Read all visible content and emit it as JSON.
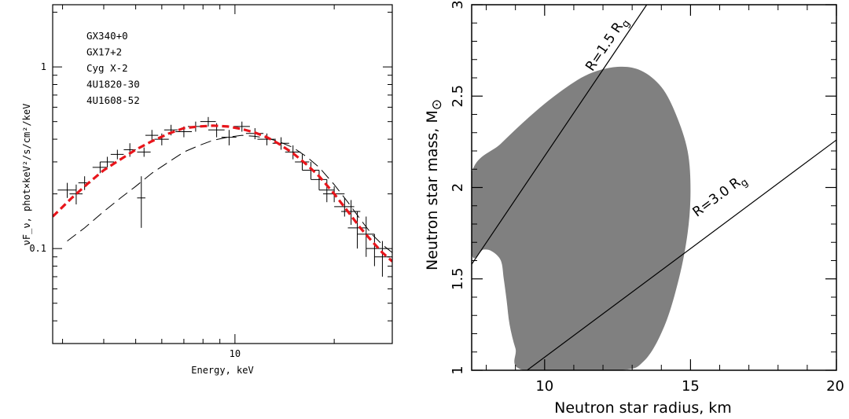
{
  "chart_data": [
    {
      "type": "scatter",
      "title": "",
      "xlabel": "Energy, keV",
      "ylabel": "νF_ν, phot×keV²/s/cm²/keV",
      "xscale": "log",
      "yscale": "log",
      "xlim": [
        2.8,
        30
      ],
      "ylim": [
        0.03,
        2.2
      ],
      "x_ticks": [
        {
          "value": 10,
          "label": "10"
        }
      ],
      "y_ticks": [
        {
          "value": 0.1,
          "label": "0.1"
        },
        {
          "value": 1,
          "label": "1"
        }
      ],
      "legend": {
        "placement": "top-left",
        "entries": [
          "GX340+0",
          "GX17+2",
          "Cyg X-2",
          "4U1820-30",
          "4U1608-52"
        ]
      },
      "model_curve": {
        "style": "red thick dashed",
        "x": [
          2.8,
          3.2,
          3.6,
          4.0,
          4.5,
          5.0,
          5.6,
          6.3,
          7.0,
          7.8,
          8.6,
          9.5,
          10.5,
          11.5,
          12.5,
          13.5,
          15.0,
          16.5,
          18.0,
          20.0,
          22.0,
          24.0,
          26.0,
          28.0,
          30.0
        ],
        "y": [
          0.15,
          0.19,
          0.23,
          0.27,
          0.31,
          0.35,
          0.39,
          0.43,
          0.46,
          0.47,
          0.475,
          0.47,
          0.455,
          0.435,
          0.41,
          0.38,
          0.335,
          0.29,
          0.25,
          0.2,
          0.16,
          0.13,
          0.11,
          0.095,
          0.085
        ]
      },
      "reference_curve": {
        "style": "black long dashed",
        "x": [
          3.1,
          3.5,
          4.0,
          4.5,
          5.0,
          5.6,
          6.3,
          7.0,
          7.8,
          8.6,
          9.5,
          10.5,
          11.5,
          12.5,
          13.5,
          15.0,
          16.5,
          18.0,
          20.0,
          22.0,
          24.0,
          26.0,
          28.0,
          30.0
        ],
        "y": [
          0.11,
          0.13,
          0.16,
          0.19,
          0.22,
          0.26,
          0.3,
          0.34,
          0.37,
          0.395,
          0.41,
          0.42,
          0.415,
          0.405,
          0.39,
          0.36,
          0.32,
          0.28,
          0.225,
          0.18,
          0.145,
          0.12,
          0.105,
          0.095
        ]
      },
      "data_points": [
        {
          "x": 3.1,
          "y": 0.21,
          "xerr": 0.2,
          "yerr": 0.02
        },
        {
          "x": 3.3,
          "y": 0.2,
          "xerr": 0.15,
          "yerr": 0.025
        },
        {
          "x": 3.5,
          "y": 0.23,
          "xerr": 0.15,
          "yerr": 0.02
        },
        {
          "x": 3.9,
          "y": 0.28,
          "xerr": 0.2,
          "yerr": 0.02
        },
        {
          "x": 4.1,
          "y": 0.3,
          "xerr": 0.2,
          "yerr": 0.02
        },
        {
          "x": 4.4,
          "y": 0.33,
          "xerr": 0.2,
          "yerr": 0.02
        },
        {
          "x": 4.8,
          "y": 0.35,
          "xerr": 0.2,
          "yerr": 0.03
        },
        {
          "x": 5.2,
          "y": 0.19,
          "xerr": 0.15,
          "yerr": 0.06
        },
        {
          "x": 5.3,
          "y": 0.34,
          "xerr": 0.25,
          "yerr": 0.02
        },
        {
          "x": 5.6,
          "y": 0.42,
          "xerr": 0.25,
          "yerr": 0.03
        },
        {
          "x": 6.0,
          "y": 0.4,
          "xerr": 0.3,
          "yerr": 0.03
        },
        {
          "x": 6.4,
          "y": 0.45,
          "xerr": 0.3,
          "yerr": 0.03
        },
        {
          "x": 7.0,
          "y": 0.44,
          "xerr": 0.4,
          "yerr": 0.03
        },
        {
          "x": 7.6,
          "y": 0.47,
          "xerr": 0.4,
          "yerr": 0.03
        },
        {
          "x": 8.3,
          "y": 0.5,
          "xerr": 0.45,
          "yerr": 0.03
        },
        {
          "x": 8.8,
          "y": 0.45,
          "xerr": 0.5,
          "yerr": 0.04
        },
        {
          "x": 9.6,
          "y": 0.41,
          "xerr": 0.5,
          "yerr": 0.04
        },
        {
          "x": 10.5,
          "y": 0.47,
          "xerr": 0.6,
          "yerr": 0.03
        },
        {
          "x": 11.5,
          "y": 0.43,
          "xerr": 0.7,
          "yerr": 0.03
        },
        {
          "x": 12.5,
          "y": 0.4,
          "xerr": 0.8,
          "yerr": 0.03
        },
        {
          "x": 13.8,
          "y": 0.38,
          "xerr": 0.8,
          "yerr": 0.03
        },
        {
          "x": 15.0,
          "y": 0.34,
          "xerr": 0.8,
          "yerr": 0.03
        },
        {
          "x": 16.0,
          "y": 0.3,
          "xerr": 0.8,
          "yerr": 0.03
        },
        {
          "x": 17.0,
          "y": 0.27,
          "xerr": 1.0,
          "yerr": 0.03
        },
        {
          "x": 18.0,
          "y": 0.24,
          "xerr": 1.0,
          "yerr": 0.03
        },
        {
          "x": 19.0,
          "y": 0.21,
          "xerr": 1.0,
          "yerr": 0.03
        },
        {
          "x": 20.0,
          "y": 0.2,
          "xerr": 1.5,
          "yerr": 0.02
        },
        {
          "x": 21.5,
          "y": 0.17,
          "xerr": 1.5,
          "yerr": 0.02
        },
        {
          "x": 22.5,
          "y": 0.16,
          "xerr": 1.5,
          "yerr": 0.025
        },
        {
          "x": 23.5,
          "y": 0.13,
          "xerr": 1.5,
          "yerr": 0.03
        },
        {
          "x": 25.0,
          "y": 0.12,
          "xerr": 1.5,
          "yerr": 0.03
        },
        {
          "x": 26.5,
          "y": 0.1,
          "xerr": 1.5,
          "yerr": 0.02
        },
        {
          "x": 28.0,
          "y": 0.09,
          "xerr": 1.5,
          "yerr": 0.02
        }
      ]
    },
    {
      "type": "area",
      "title": "",
      "xlabel": "Neutron star radius, km",
      "ylabel": "Neutron star mass, M",
      "ylabel_symbol": "⊙",
      "xlim": [
        7.5,
        20
      ],
      "ylim": [
        1,
        3
      ],
      "x_ticks": [
        {
          "value": 10,
          "label": "10"
        },
        {
          "value": 15,
          "label": "15"
        },
        {
          "value": 20,
          "label": "20"
        }
      ],
      "y_ticks": [
        {
          "value": 1,
          "label": "1"
        },
        {
          "value": 1.5,
          "label": "1.5"
        },
        {
          "value": 2,
          "label": "2"
        },
        {
          "value": 2.5,
          "label": "2.5"
        },
        {
          "value": 3,
          "label": "3"
        }
      ],
      "region_color": "#808080",
      "allowed_region": {
        "outer": {
          "x": [
            7.5,
            8.5,
            9.5,
            10.5,
            11.5,
            12.5,
            13.3,
            14.0,
            14.5,
            14.9,
            15.0,
            14.9,
            14.6,
            14.1,
            13.4,
            12.5,
            9.3,
            9.0,
            8.8,
            8.7,
            8.6,
            8.5,
            8.2,
            7.9,
            7.5
          ],
          "y": [
            2.08,
            2.24,
            2.39,
            2.52,
            2.62,
            2.66,
            2.64,
            2.55,
            2.4,
            2.2,
            1.98,
            1.75,
            1.5,
            1.24,
            1.05,
            1.0,
            1.0,
            1.12,
            1.25,
            1.38,
            1.5,
            1.6,
            1.65,
            1.66,
            1.64
          ]
        }
      },
      "lines": [
        {
          "label_main": "R=1.5 R",
          "label_sub": "g",
          "x": [
            7.5,
            13.5
          ],
          "y": [
            1.58,
            3.0
          ]
        },
        {
          "label_main": "R=3.0 R",
          "label_sub": "g",
          "x": [
            9.4,
            20.0
          ],
          "y": [
            1.0,
            2.26
          ]
        }
      ]
    }
  ]
}
